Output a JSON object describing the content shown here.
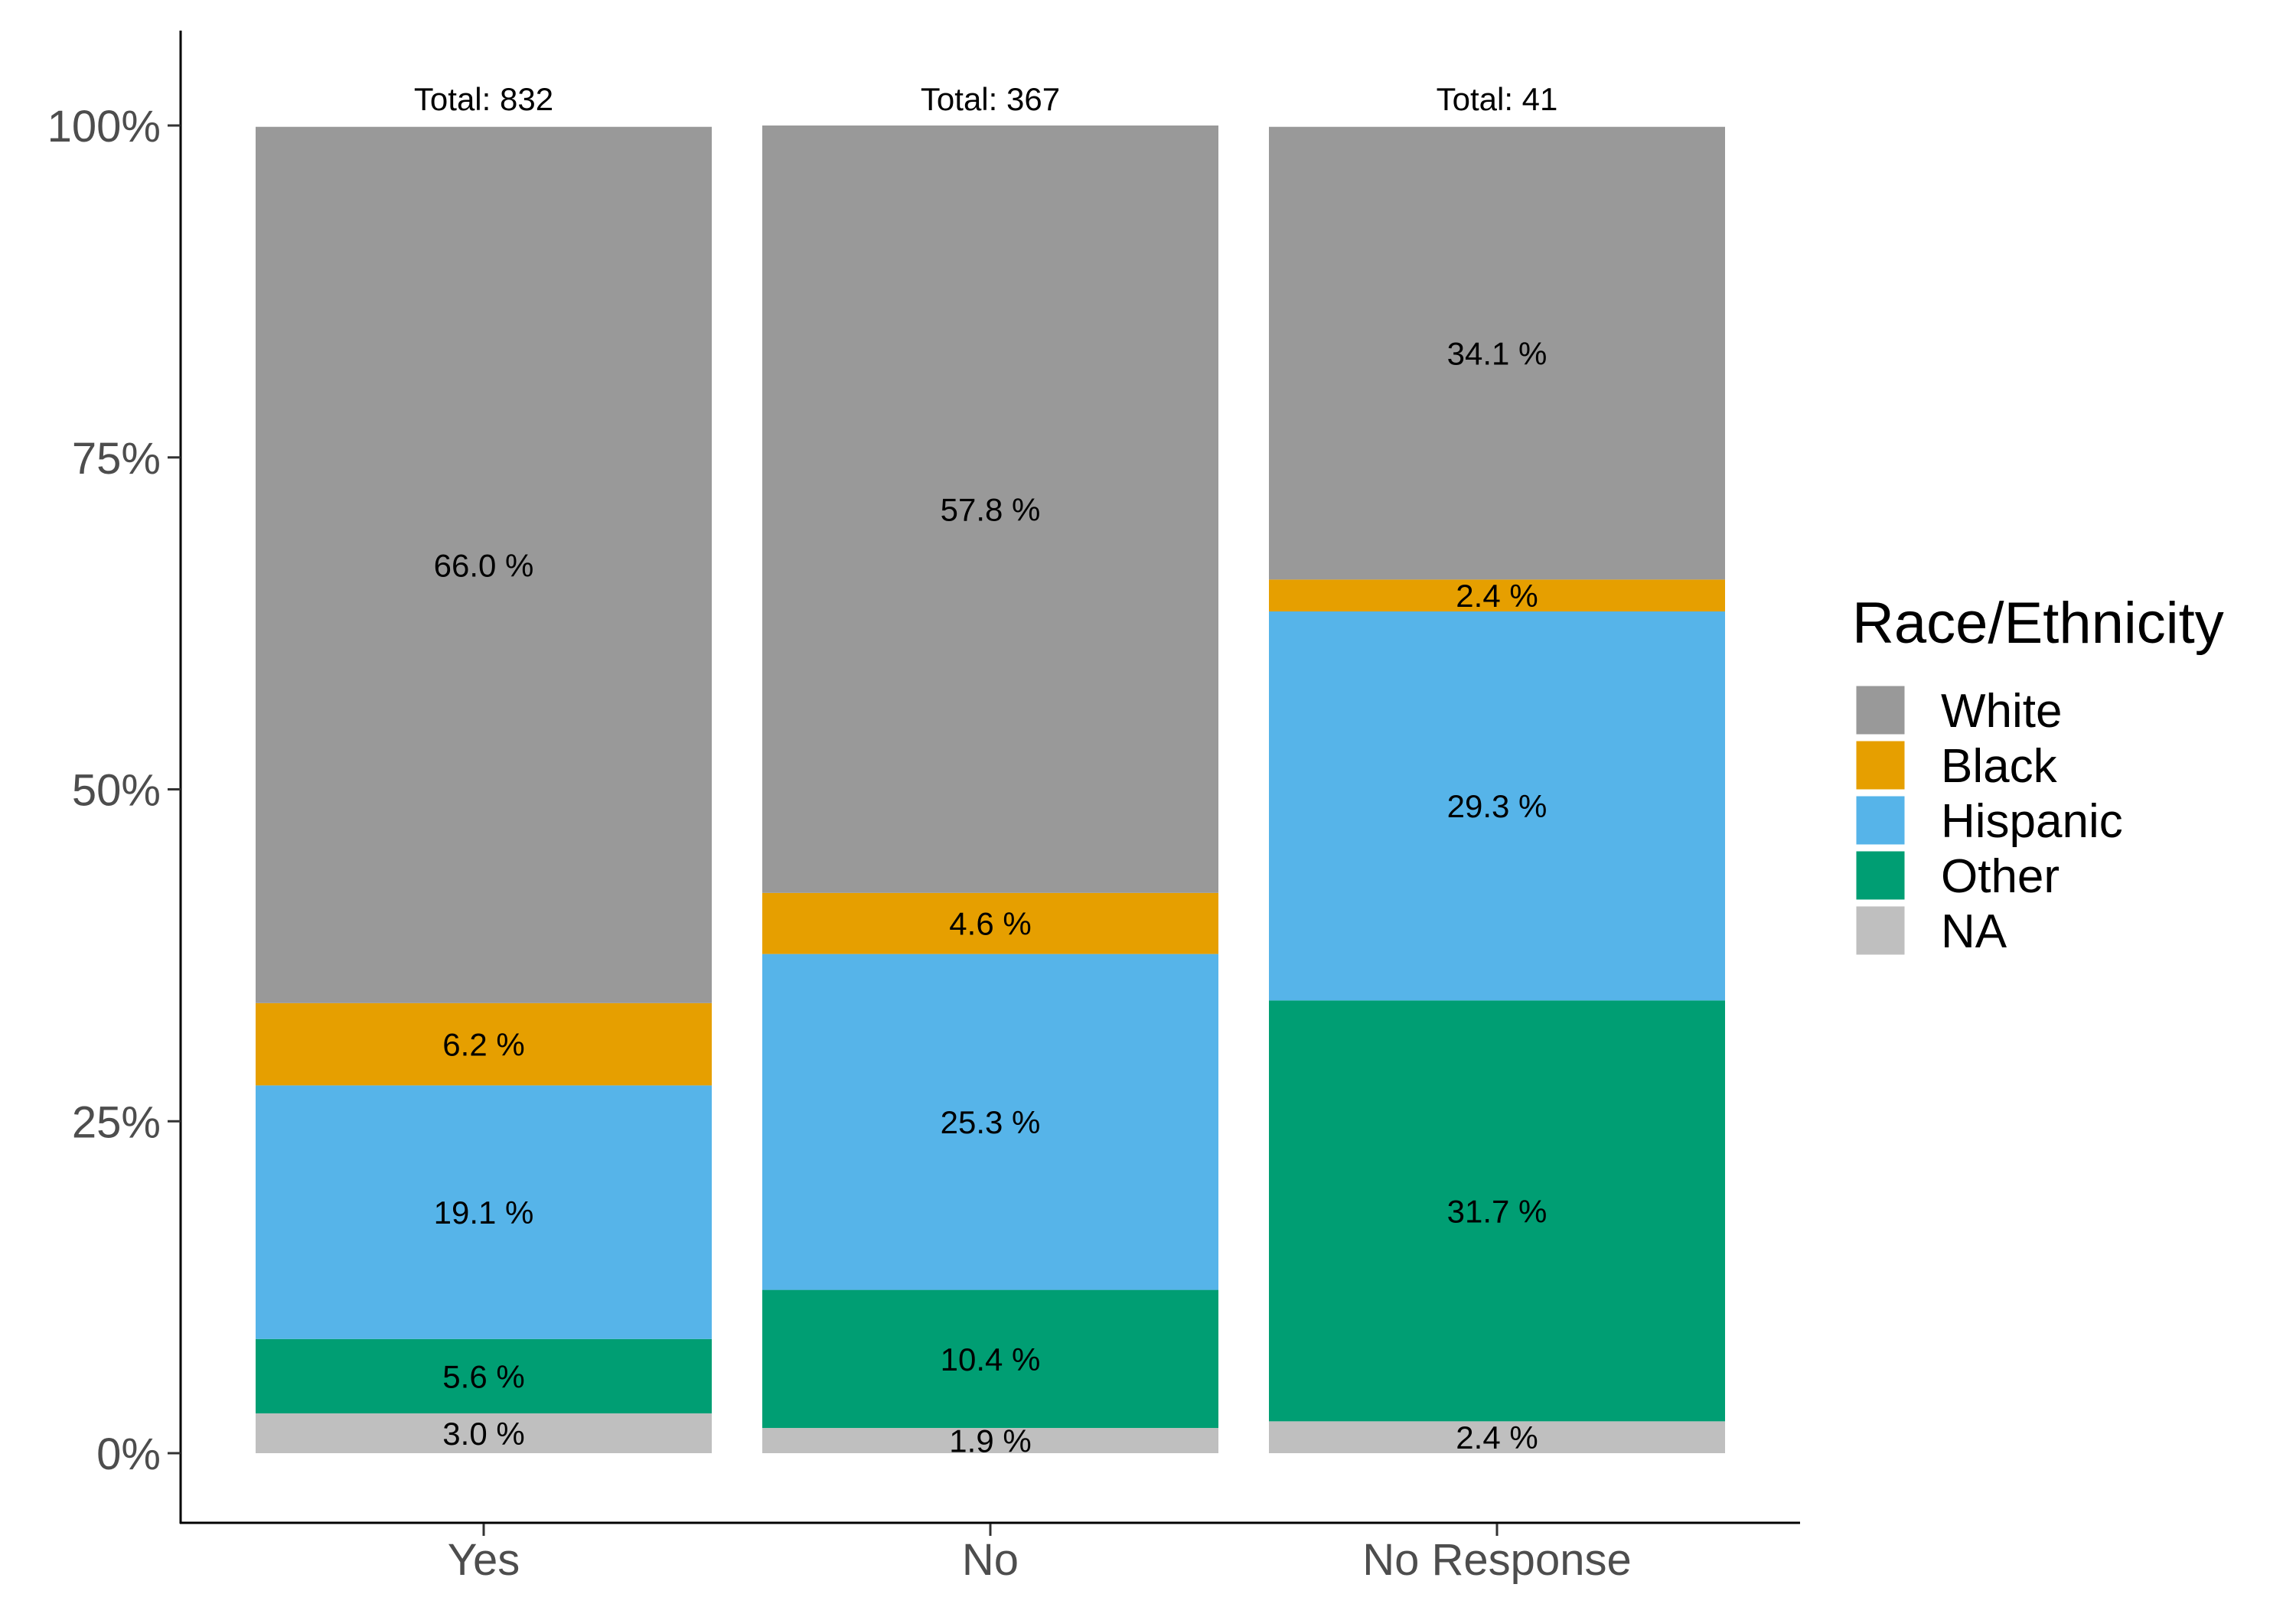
{
  "chart_data": {
    "type": "bar",
    "stacked": true,
    "percent": true,
    "categories": [
      "Yes",
      "No",
      "No Response"
    ],
    "totals": [
      "Total:  832",
      "Total:  367",
      "Total:  41"
    ],
    "series": [
      {
        "name": "NA",
        "color": "#bfbfbf",
        "values": [
          3.0,
          1.9,
          2.4
        ],
        "labels": [
          "3.0 %",
          "1.9 %",
          "2.4 %"
        ]
      },
      {
        "name": "Other",
        "color": "#009e73",
        "values": [
          5.6,
          10.4,
          31.7
        ],
        "labels": [
          "5.6 %",
          "10.4 %",
          "31.7 %"
        ]
      },
      {
        "name": "Hispanic",
        "color": "#56b4e9",
        "values": [
          19.1,
          25.3,
          29.3
        ],
        "labels": [
          "19.1 %",
          "25.3 %",
          "29.3 %"
        ]
      },
      {
        "name": "Black",
        "color": "#e69f00",
        "values": [
          6.2,
          4.6,
          2.4
        ],
        "labels": [
          "6.2 %",
          "4.6 %",
          "2.4 %"
        ]
      },
      {
        "name": "White",
        "color": "#999999",
        "values": [
          66.0,
          57.8,
          34.1
        ],
        "labels": [
          "66.0 %",
          "57.8 %",
          "34.1 %"
        ]
      }
    ],
    "yticks": [
      {
        "value": 0,
        "label": "0%"
      },
      {
        "value": 25,
        "label": "25%"
      },
      {
        "value": 50,
        "label": "50%"
      },
      {
        "value": 75,
        "label": "75%"
      },
      {
        "value": 100,
        "label": "100%"
      }
    ],
    "ylim": [
      0,
      100
    ],
    "title": "",
    "xlabel": "",
    "ylabel": "",
    "grid": false,
    "legend": {
      "title": "Race/Ethnicity",
      "placement": "right",
      "order": [
        "White",
        "Black",
        "Hispanic",
        "Other",
        "NA"
      ]
    }
  }
}
